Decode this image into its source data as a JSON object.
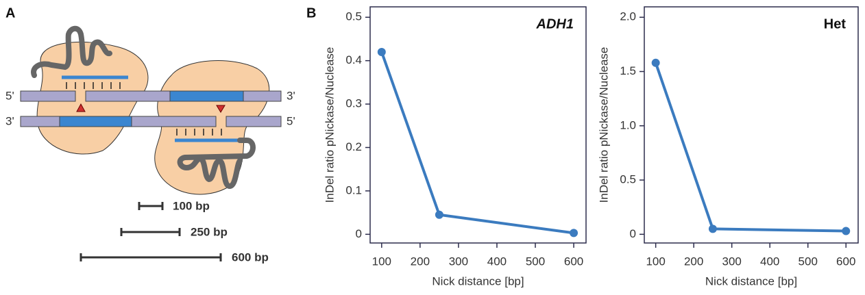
{
  "panel_labels": [
    "A",
    "B"
  ],
  "diagram": {
    "strand_ends": [
      "5'",
      "3'",
      "3'",
      "5'"
    ],
    "scale_bars": [
      "100 bp",
      "250 bp",
      "600 bp"
    ]
  },
  "chart_data": [
    {
      "type": "line",
      "title": "ADH1",
      "xlabel": "Nick distance [bp]",
      "ylabel": "InDel ratio pNickase/Nuclease",
      "x": [
        100,
        250,
        600
      ],
      "values": [
        0.42,
        0.045,
        0.003
      ],
      "color": "#3b7bbf",
      "xlim": [
        70,
        632
      ],
      "ylim": [
        -0.02,
        0.524
      ],
      "xticks": [
        100,
        200,
        300,
        400,
        500,
        600
      ],
      "yticks": [
        0,
        0.1,
        0.2,
        0.3,
        0.4,
        0.5
      ]
    },
    {
      "type": "line",
      "title": "Het",
      "xlabel": "Nick distance [bp]",
      "ylabel": "InDel ratio pNickase/Nuclease",
      "x": [
        100,
        250,
        600
      ],
      "values": [
        1.58,
        0.05,
        0.03
      ],
      "color": "#3b7bbf",
      "xlim": [
        70,
        632
      ],
      "ylim": [
        -0.08,
        2.096
      ],
      "xticks": [
        100,
        200,
        300,
        400,
        500,
        600
      ],
      "yticks": [
        0,
        0.5,
        {
          "value": 1,
          "label": "1.0"
        },
        1.5,
        {
          "value": 2,
          "label": "2.0"
        }
      ]
    }
  ]
}
